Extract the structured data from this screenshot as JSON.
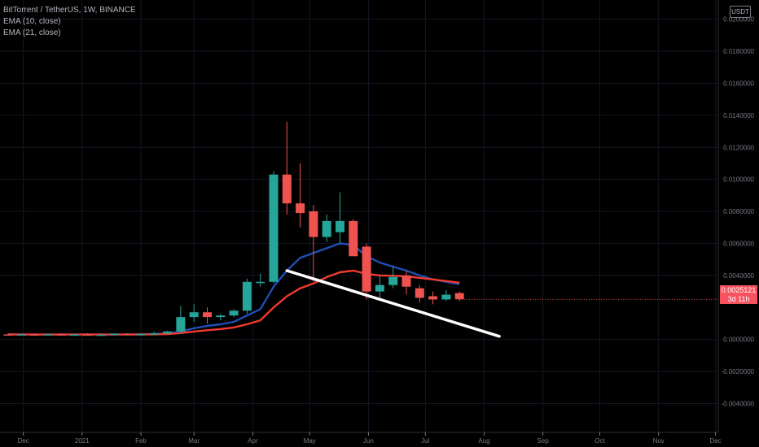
{
  "legend": {
    "symbol": "BitTorrent / TetherUS, 1W, BINANCE",
    "ema10": "EMA (10, close)",
    "ema21": "EMA (21, close)"
  },
  "currency_badge": "USDT",
  "last_price": {
    "value": "0.0025121",
    "countdown": "3d 11h"
  },
  "colors": {
    "up": "#26a69a",
    "down": "#ef5350",
    "ema10": "#1e4fb4",
    "ema21": "#f23a2e",
    "trendline": "#ffffff",
    "background": "#000000"
  },
  "chart_data": {
    "type": "candlestick",
    "title": "BitTorrent / TetherUS, 1W, BINANCE",
    "ylim": [
      -0.0058,
      0.0212
    ],
    "y_ticks": [
      {
        "value": 0.02,
        "label": "0.0200000"
      },
      {
        "value": 0.018,
        "label": "0.0180000"
      },
      {
        "value": 0.016,
        "label": "0.0160000"
      },
      {
        "value": 0.014,
        "label": "0.0140000"
      },
      {
        "value": 0.012,
        "label": "0.0120000"
      },
      {
        "value": 0.01,
        "label": "0.0100000"
      },
      {
        "value": 0.008,
        "label": "0.0080000"
      },
      {
        "value": 0.006,
        "label": "0.0060000"
      },
      {
        "value": 0.004,
        "label": "0.0040000"
      },
      {
        "value": 0.0,
        "label": "0.0000000"
      },
      {
        "value": -0.002,
        "label": "-0.0020000"
      },
      {
        "value": -0.004,
        "label": "-0.0040000"
      }
    ],
    "x_ticks": [
      "Dec",
      "2021",
      "Feb",
      "Mar",
      "Apr",
      "May",
      "Jun",
      "Jul",
      "Aug",
      "Sep",
      "Oct",
      "Nov",
      "Dec"
    ],
    "candles": [
      {
        "date": "2020-11-23",
        "o": 0.00032,
        "h": 0.00038,
        "l": 0.00026,
        "c": 0.0003
      },
      {
        "date": "2020-11-30",
        "o": 0.0003,
        "h": 0.00036,
        "l": 0.00026,
        "c": 0.00032
      },
      {
        "date": "2020-12-07",
        "o": 0.00032,
        "h": 0.00036,
        "l": 0.00027,
        "c": 0.00029
      },
      {
        "date": "2020-12-14",
        "o": 0.00029,
        "h": 0.00035,
        "l": 0.00027,
        "c": 0.00033
      },
      {
        "date": "2020-12-21",
        "o": 0.00033,
        "h": 0.00036,
        "l": 0.00024,
        "c": 0.00028
      },
      {
        "date": "2020-12-28",
        "o": 0.00028,
        "h": 0.00033,
        "l": 0.00025,
        "c": 0.00031
      },
      {
        "date": "2021-01-04",
        "o": 0.00031,
        "h": 0.0004,
        "l": 0.00027,
        "c": 0.00029
      },
      {
        "date": "2021-01-11",
        "o": 0.00029,
        "h": 0.00034,
        "l": 0.00025,
        "c": 0.0003
      },
      {
        "date": "2021-01-18",
        "o": 0.0003,
        "h": 0.00038,
        "l": 0.00028,
        "c": 0.00036
      },
      {
        "date": "2021-01-25",
        "o": 0.00036,
        "h": 0.0004,
        "l": 0.00028,
        "c": 0.00031
      },
      {
        "date": "2021-02-01",
        "o": 0.00031,
        "h": 0.00038,
        "l": 0.00029,
        "c": 0.00034
      },
      {
        "date": "2021-02-08",
        "o": 0.00034,
        "h": 0.00048,
        "l": 0.0003,
        "c": 0.00038
      },
      {
        "date": "2021-02-15",
        "o": 0.00038,
        "h": 0.00055,
        "l": 0.00033,
        "c": 0.0005
      },
      {
        "date": "2021-02-22",
        "o": 0.0005,
        "h": 0.0021,
        "l": 0.0004,
        "c": 0.0014
      },
      {
        "date": "2021-03-01",
        "o": 0.0014,
        "h": 0.0022,
        "l": 0.0011,
        "c": 0.0017
      },
      {
        "date": "2021-03-08",
        "o": 0.0017,
        "h": 0.002,
        "l": 0.001,
        "c": 0.0014
      },
      {
        "date": "2021-03-15",
        "o": 0.0014,
        "h": 0.0016,
        "l": 0.0012,
        "c": 0.0015
      },
      {
        "date": "2021-03-22",
        "o": 0.0015,
        "h": 0.0019,
        "l": 0.0014,
        "c": 0.0018
      },
      {
        "date": "2021-03-29",
        "o": 0.0018,
        "h": 0.0038,
        "l": 0.0016,
        "c": 0.0036
      },
      {
        "date": "2021-04-05",
        "o": 0.0036,
        "h": 0.0041,
        "l": 0.0033,
        "c": 0.0036
      },
      {
        "date": "2021-04-12",
        "o": 0.0036,
        "h": 0.0105,
        "l": 0.0035,
        "c": 0.0103
      },
      {
        "date": "2021-04-19",
        "o": 0.0103,
        "h": 0.0136,
        "l": 0.0078,
        "c": 0.0085
      },
      {
        "date": "2021-04-26",
        "o": 0.0085,
        "h": 0.011,
        "l": 0.007,
        "c": 0.0079
      },
      {
        "date": "2021-05-03",
        "o": 0.008,
        "h": 0.0084,
        "l": 0.0036,
        "c": 0.0064
      },
      {
        "date": "2021-05-10",
        "o": 0.0064,
        "h": 0.0078,
        "l": 0.0061,
        "c": 0.0074
      },
      {
        "date": "2021-05-17",
        "o": 0.0067,
        "h": 0.0092,
        "l": 0.006,
        "c": 0.0074
      },
      {
        "date": "2021-05-24",
        "o": 0.0074,
        "h": 0.0075,
        "l": 0.0052,
        "c": 0.0052
      },
      {
        "date": "2021-05-31",
        "o": 0.0058,
        "h": 0.006,
        "l": 0.0025,
        "c": 0.003
      },
      {
        "date": "2021-06-07",
        "o": 0.003,
        "h": 0.004,
        "l": 0.0026,
        "c": 0.0034
      },
      {
        "date": "2021-06-14",
        "o": 0.0034,
        "h": 0.0046,
        "l": 0.0032,
        "c": 0.0039
      },
      {
        "date": "2021-06-21",
        "o": 0.004,
        "h": 0.0043,
        "l": 0.0028,
        "c": 0.0033
      },
      {
        "date": "2021-06-28",
        "o": 0.0032,
        "h": 0.0034,
        "l": 0.0023,
        "c": 0.0026
      },
      {
        "date": "2021-07-05",
        "o": 0.0027,
        "h": 0.003,
        "l": 0.0022,
        "c": 0.0025
      },
      {
        "date": "2021-07-12",
        "o": 0.0025,
        "h": 0.0031,
        "l": 0.0024,
        "c": 0.0028
      },
      {
        "date": "2021-07-19",
        "o": 0.0029,
        "h": 0.003,
        "l": 0.0024,
        "c": 0.00251
      }
    ],
    "series": [
      {
        "name": "EMA (10, close)",
        "values": [
          0.00032,
          0.00032,
          0.00031,
          0.00031,
          0.00031,
          0.00031,
          0.00031,
          0.00031,
          0.00031,
          0.00031,
          0.00032,
          0.00034,
          0.00038,
          0.0005,
          0.0007,
          0.00085,
          0.00095,
          0.0011,
          0.0015,
          0.0019,
          0.0033,
          0.0043,
          0.0051,
          0.0054,
          0.0057,
          0.006,
          0.0059,
          0.0052,
          0.0048,
          0.00455,
          0.0043,
          0.004,
          0.00375,
          0.0036,
          0.00345
        ]
      },
      {
        "name": "EMA (21, close)",
        "values": [
          0.00031,
          0.00031,
          0.00031,
          0.00031,
          0.00031,
          0.00031,
          0.00031,
          0.00031,
          0.00031,
          0.00031,
          0.00031,
          0.00032,
          0.00034,
          0.0004,
          0.0005,
          0.00058,
          0.00065,
          0.00075,
          0.00095,
          0.0012,
          0.002,
          0.0027,
          0.0032,
          0.0035,
          0.0039,
          0.0042,
          0.0043,
          0.0041,
          0.004,
          0.00398,
          0.00394,
          0.00385,
          0.00375,
          0.00365,
          0.00355
        ]
      }
    ],
    "trendline": {
      "from": {
        "date": "2021-04-19",
        "value": 0.0043
      },
      "to": {
        "date": "2021-08-09",
        "value": 0.0002
      }
    },
    "last_value": 0.0025121
  }
}
